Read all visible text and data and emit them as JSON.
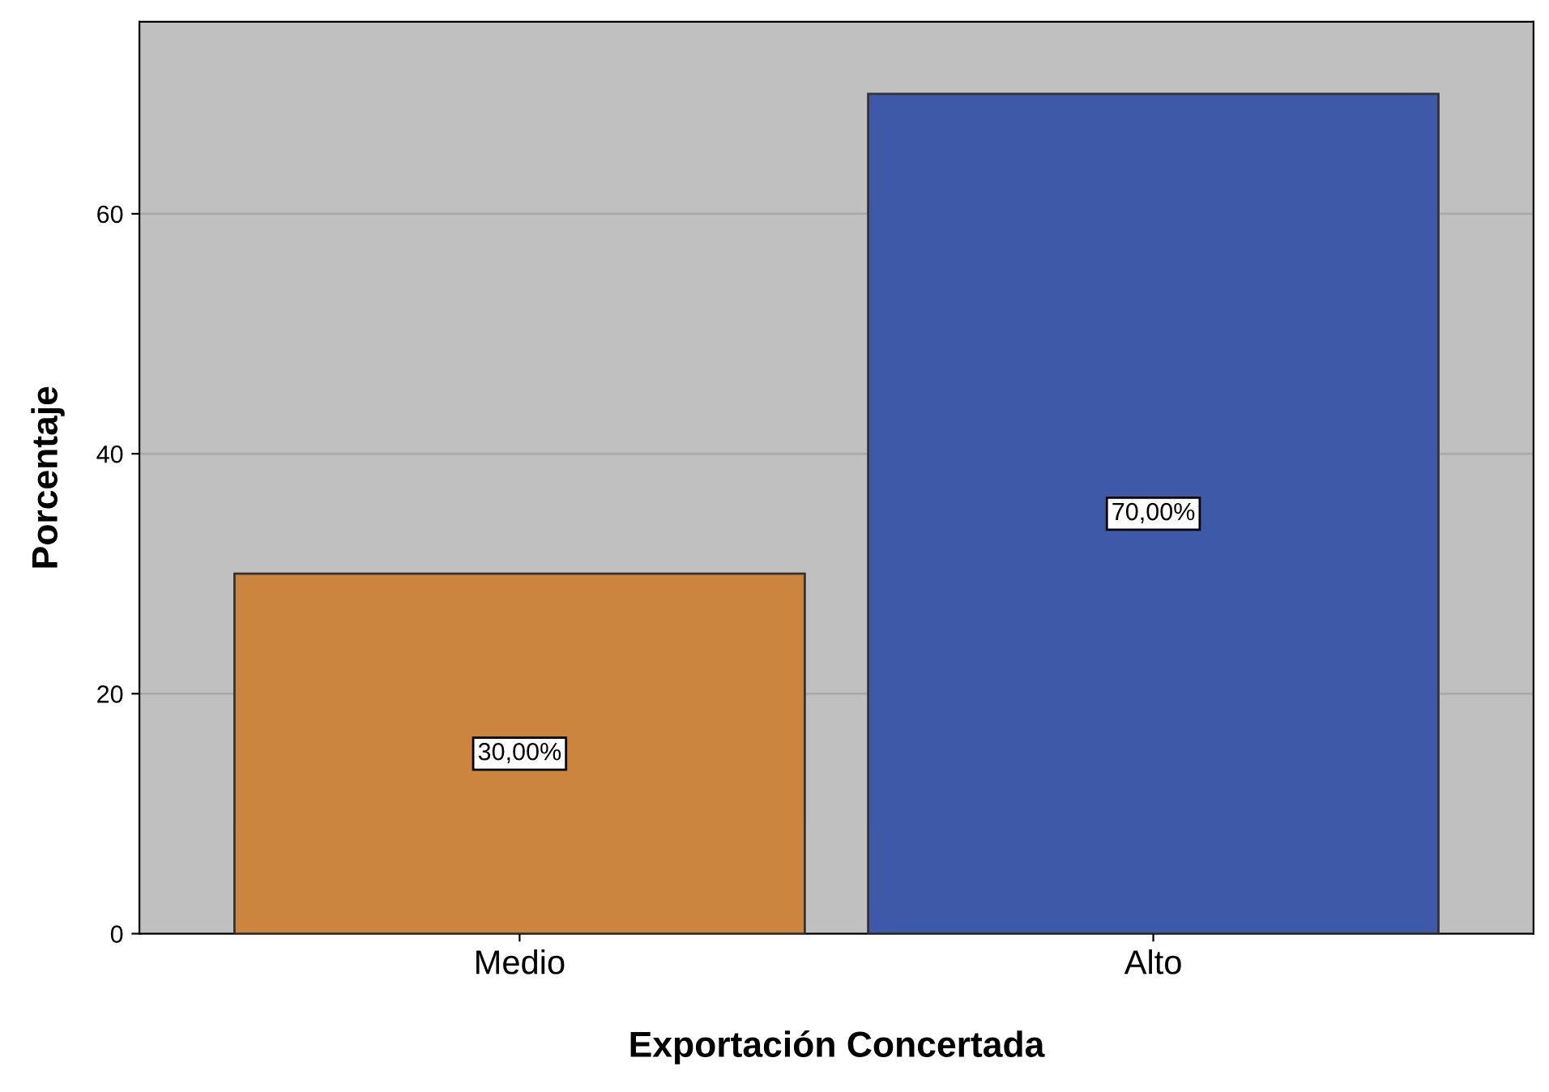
{
  "chart_data": {
    "type": "bar",
    "xlabel": "Exportación Concertada",
    "ylabel": "Porcentaje",
    "categories": [
      "Medio",
      "Alto"
    ],
    "values": [
      30,
      70
    ],
    "colors": [
      "#cc853f",
      "#3d59a8"
    ],
    "value_labels": [
      "30,00%",
      "70,00%"
    ],
    "ylim": [
      0,
      76
    ],
    "yticks": [
      0,
      20,
      40,
      60
    ],
    "grid": "y"
  }
}
